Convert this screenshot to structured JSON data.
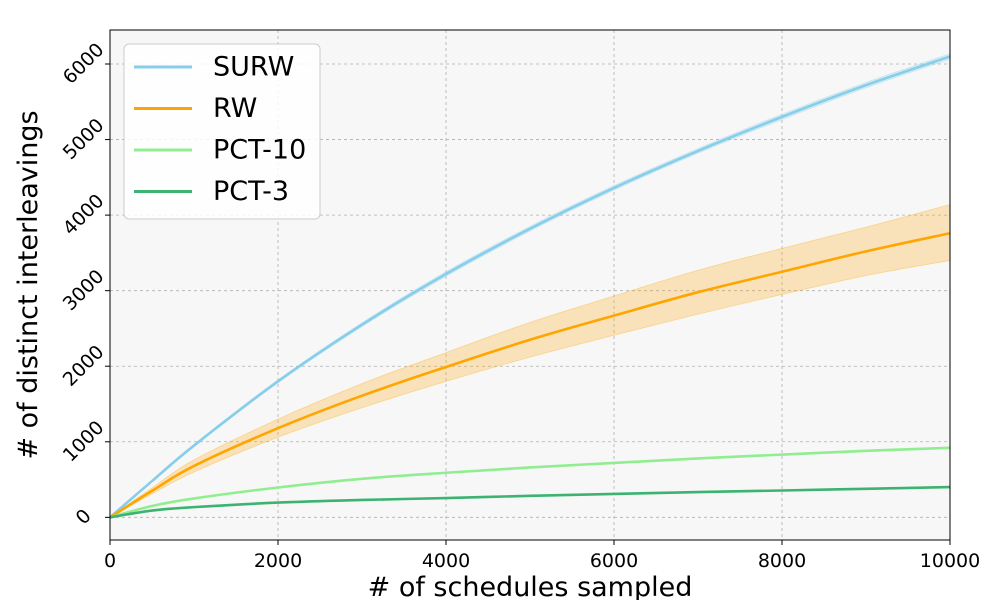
{
  "chart_data": {
    "type": "line",
    "xlabel": "# of schedules sampled",
    "ylabel": "# of distinct interleavings",
    "xlim": [
      0,
      10000
    ],
    "ylim": [
      -300,
      6450
    ],
    "xticks": [
      0,
      2000,
      4000,
      6000,
      8000,
      10000
    ],
    "yticks": [
      0,
      1000,
      2000,
      3000,
      4000,
      5000,
      6000
    ],
    "grid": true,
    "legend_position": "top-left",
    "x": [
      0,
      500,
      1000,
      2000,
      3000,
      4000,
      5000,
      6000,
      7000,
      8000,
      9000,
      10000
    ],
    "series": [
      {
        "name": "SURW",
        "color": "#87ceeb",
        "values": [
          0,
          480,
          950,
          1800,
          2550,
          3220,
          3820,
          4360,
          4850,
          5300,
          5720,
          6100
        ],
        "band_lower": [
          0,
          470,
          935,
          1780,
          2525,
          3190,
          3790,
          4330,
          4820,
          5265,
          5685,
          6065
        ],
        "band_upper": [
          0,
          490,
          965,
          1820,
          2575,
          3250,
          3850,
          4390,
          4880,
          5335,
          5755,
          6135
        ]
      },
      {
        "name": "RW",
        "color": "#ffa500",
        "values": [
          0,
          350,
          680,
          1180,
          1610,
          1990,
          2350,
          2670,
          2980,
          3250,
          3520,
          3760
        ],
        "band_lower": [
          0,
          310,
          600,
          1060,
          1450,
          1800,
          2120,
          2410,
          2690,
          2950,
          3200,
          3400
        ],
        "band_upper": [
          0,
          390,
          760,
          1300,
          1770,
          2180,
          2580,
          2930,
          3270,
          3560,
          3840,
          4140
        ]
      },
      {
        "name": "PCT-10",
        "color": "#90ee90",
        "values": [
          0,
          150,
          250,
          395,
          510,
          590,
          660,
          720,
          780,
          830,
          880,
          920
        ],
        "band_lower": [
          0,
          147,
          246,
          389,
          503,
          582,
          652,
          711,
          771,
          820,
          869,
          909
        ],
        "band_upper": [
          0,
          153,
          254,
          401,
          517,
          598,
          668,
          729,
          789,
          840,
          891,
          931
        ]
      },
      {
        "name": "PCT-3",
        "color": "#3cb371",
        "values": [
          0,
          90,
          135,
          195,
          230,
          255,
          285,
          310,
          335,
          355,
          378,
          400
        ],
        "band_lower": [
          0,
          88,
          132,
          191,
          226,
          251,
          281,
          306,
          330,
          350,
          373,
          395
        ],
        "band_upper": [
          0,
          92,
          138,
          199,
          234,
          259,
          289,
          314,
          340,
          360,
          383,
          405
        ]
      }
    ]
  }
}
